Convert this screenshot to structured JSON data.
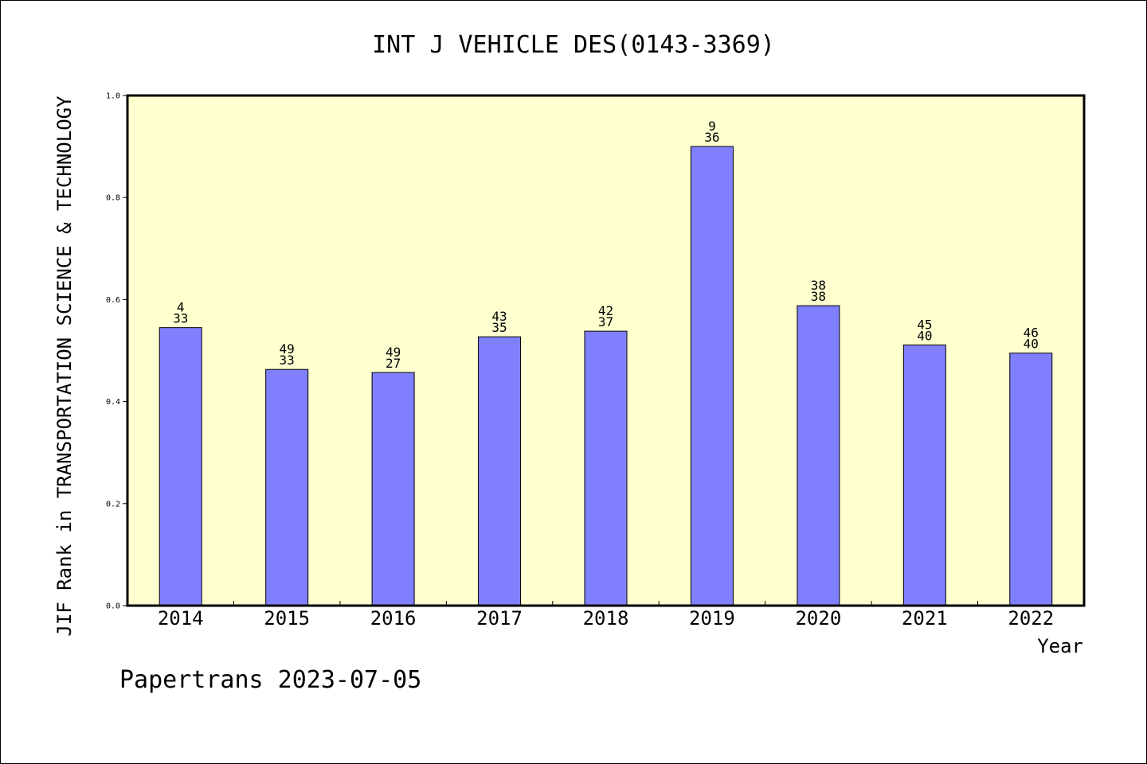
{
  "chart_data": {
    "type": "bar",
    "title": "INT J VEHICLE DES(0143-3369)",
    "xlabel": "Year",
    "ylabel": "JIF Rank in TRANSPORTATION SCIENCE & TECHNOLOGY",
    "ylim": [
      0,
      1.0
    ],
    "yticks": [
      "0.0",
      "0.2",
      "0.4",
      "0.6",
      "0.8",
      "1.0"
    ],
    "categories": [
      "2014",
      "2015",
      "2016",
      "2017",
      "2018",
      "2019",
      "2020",
      "2021",
      "2022"
    ],
    "values": [
      0.545,
      0.463,
      0.457,
      0.527,
      0.538,
      0.9,
      0.588,
      0.511,
      0.495
    ],
    "rank_labels": [
      "4",
      "49",
      "49",
      "43",
      "42",
      "9",
      "38",
      "45",
      "46"
    ],
    "total_labels": [
      "33",
      "33",
      "27",
      "35",
      "37",
      "36",
      "38",
      "40",
      "40"
    ],
    "bar_color": "#8080ff",
    "plot_background": "#ffffd0",
    "grid": false
  },
  "footer": "Papertrans 2023-07-05"
}
